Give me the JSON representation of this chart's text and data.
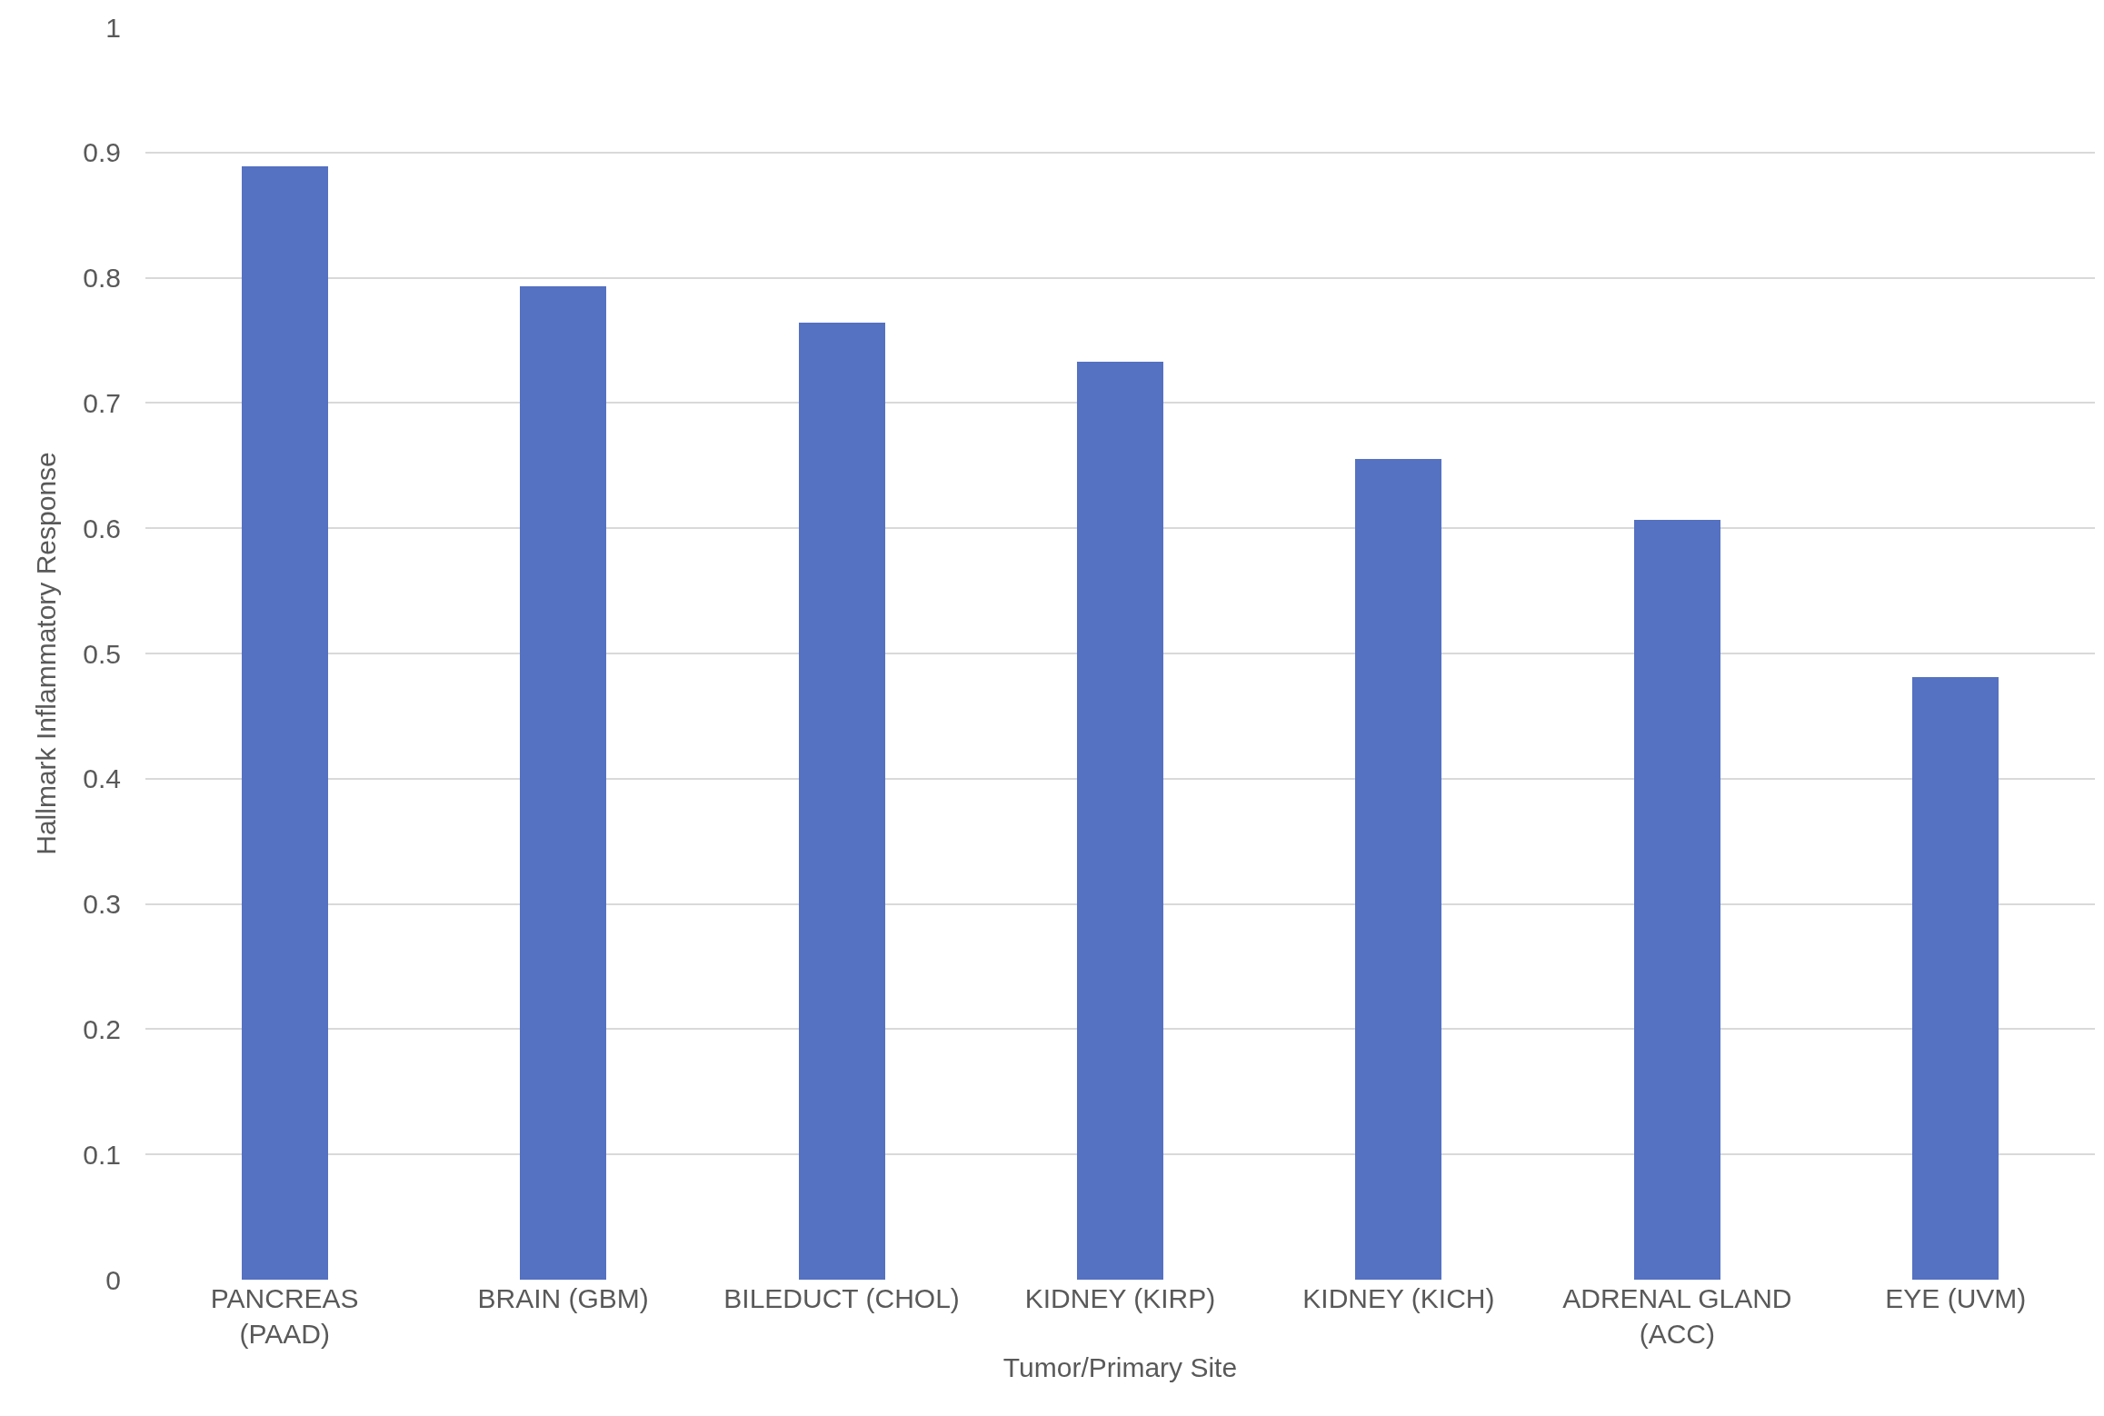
{
  "chart_data": {
    "type": "bar",
    "xlabel": "Tumor/Primary Site",
    "ylabel": "Hallmark Inflammatory Response",
    "categories": [
      "PANCREAS\n(PAAD)",
      "BRAIN (GBM)",
      "BILEDUCT (CHOL)",
      "KIDNEY (KIRP)",
      "KIDNEY (KICH)",
      "ADRENAL GLAND\n(ACC)",
      "EYE (UVM)"
    ],
    "values": [
      0.889,
      0.793,
      0.764,
      0.733,
      0.655,
      0.607,
      0.481
    ],
    "color": "#5571c1",
    "ylim": [
      0,
      1
    ],
    "yticks": [
      0,
      0.1,
      0.2,
      0.3,
      0.4,
      0.5,
      0.6,
      0.7,
      0.8,
      0.9,
      1
    ],
    "grid": "y"
  }
}
